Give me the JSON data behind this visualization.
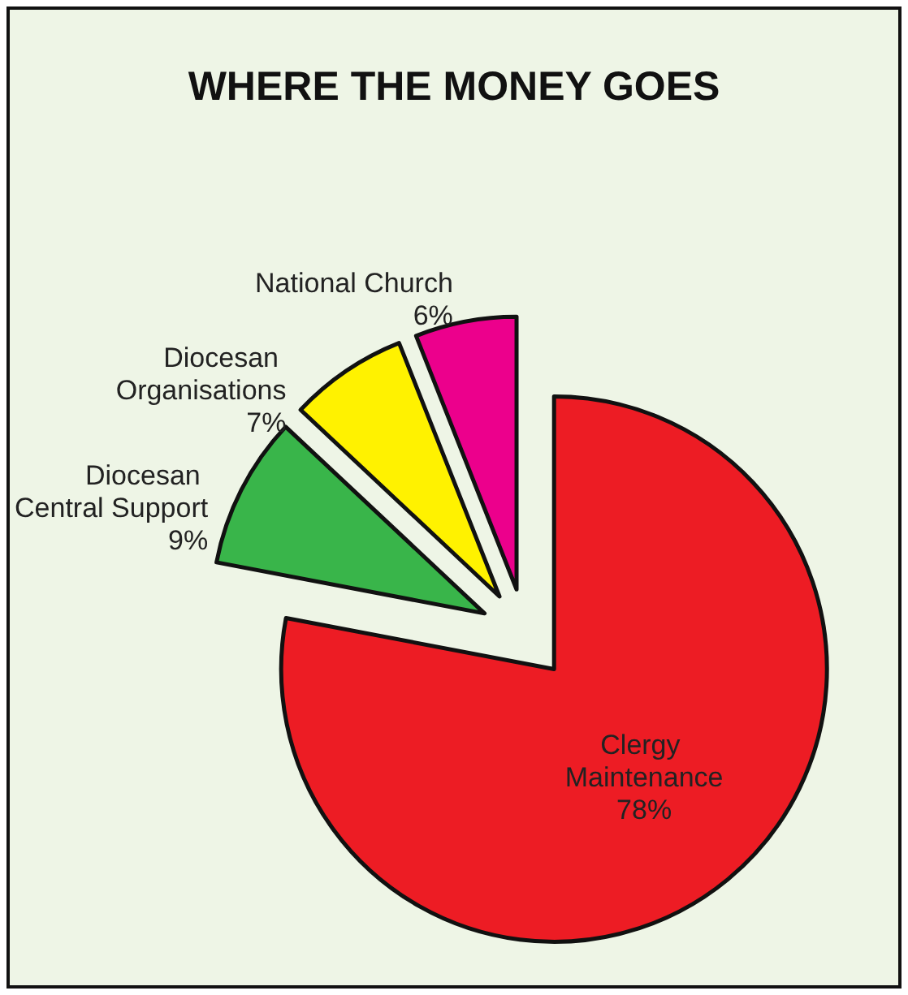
{
  "chart_data": {
    "type": "pie",
    "title": "WHERE THE MONEY GOES",
    "categories": [
      "Clergy Maintenance",
      "Diocesan Central Support",
      "Diocesan Organisations",
      "National Church"
    ],
    "values": [
      78,
      9,
      7,
      6
    ],
    "value_labels": [
      "78%",
      "9%",
      "7%",
      "6%"
    ],
    "colors": [
      "#ed1c24",
      "#39b54a",
      "#fff200",
      "#ec008c"
    ]
  }
}
